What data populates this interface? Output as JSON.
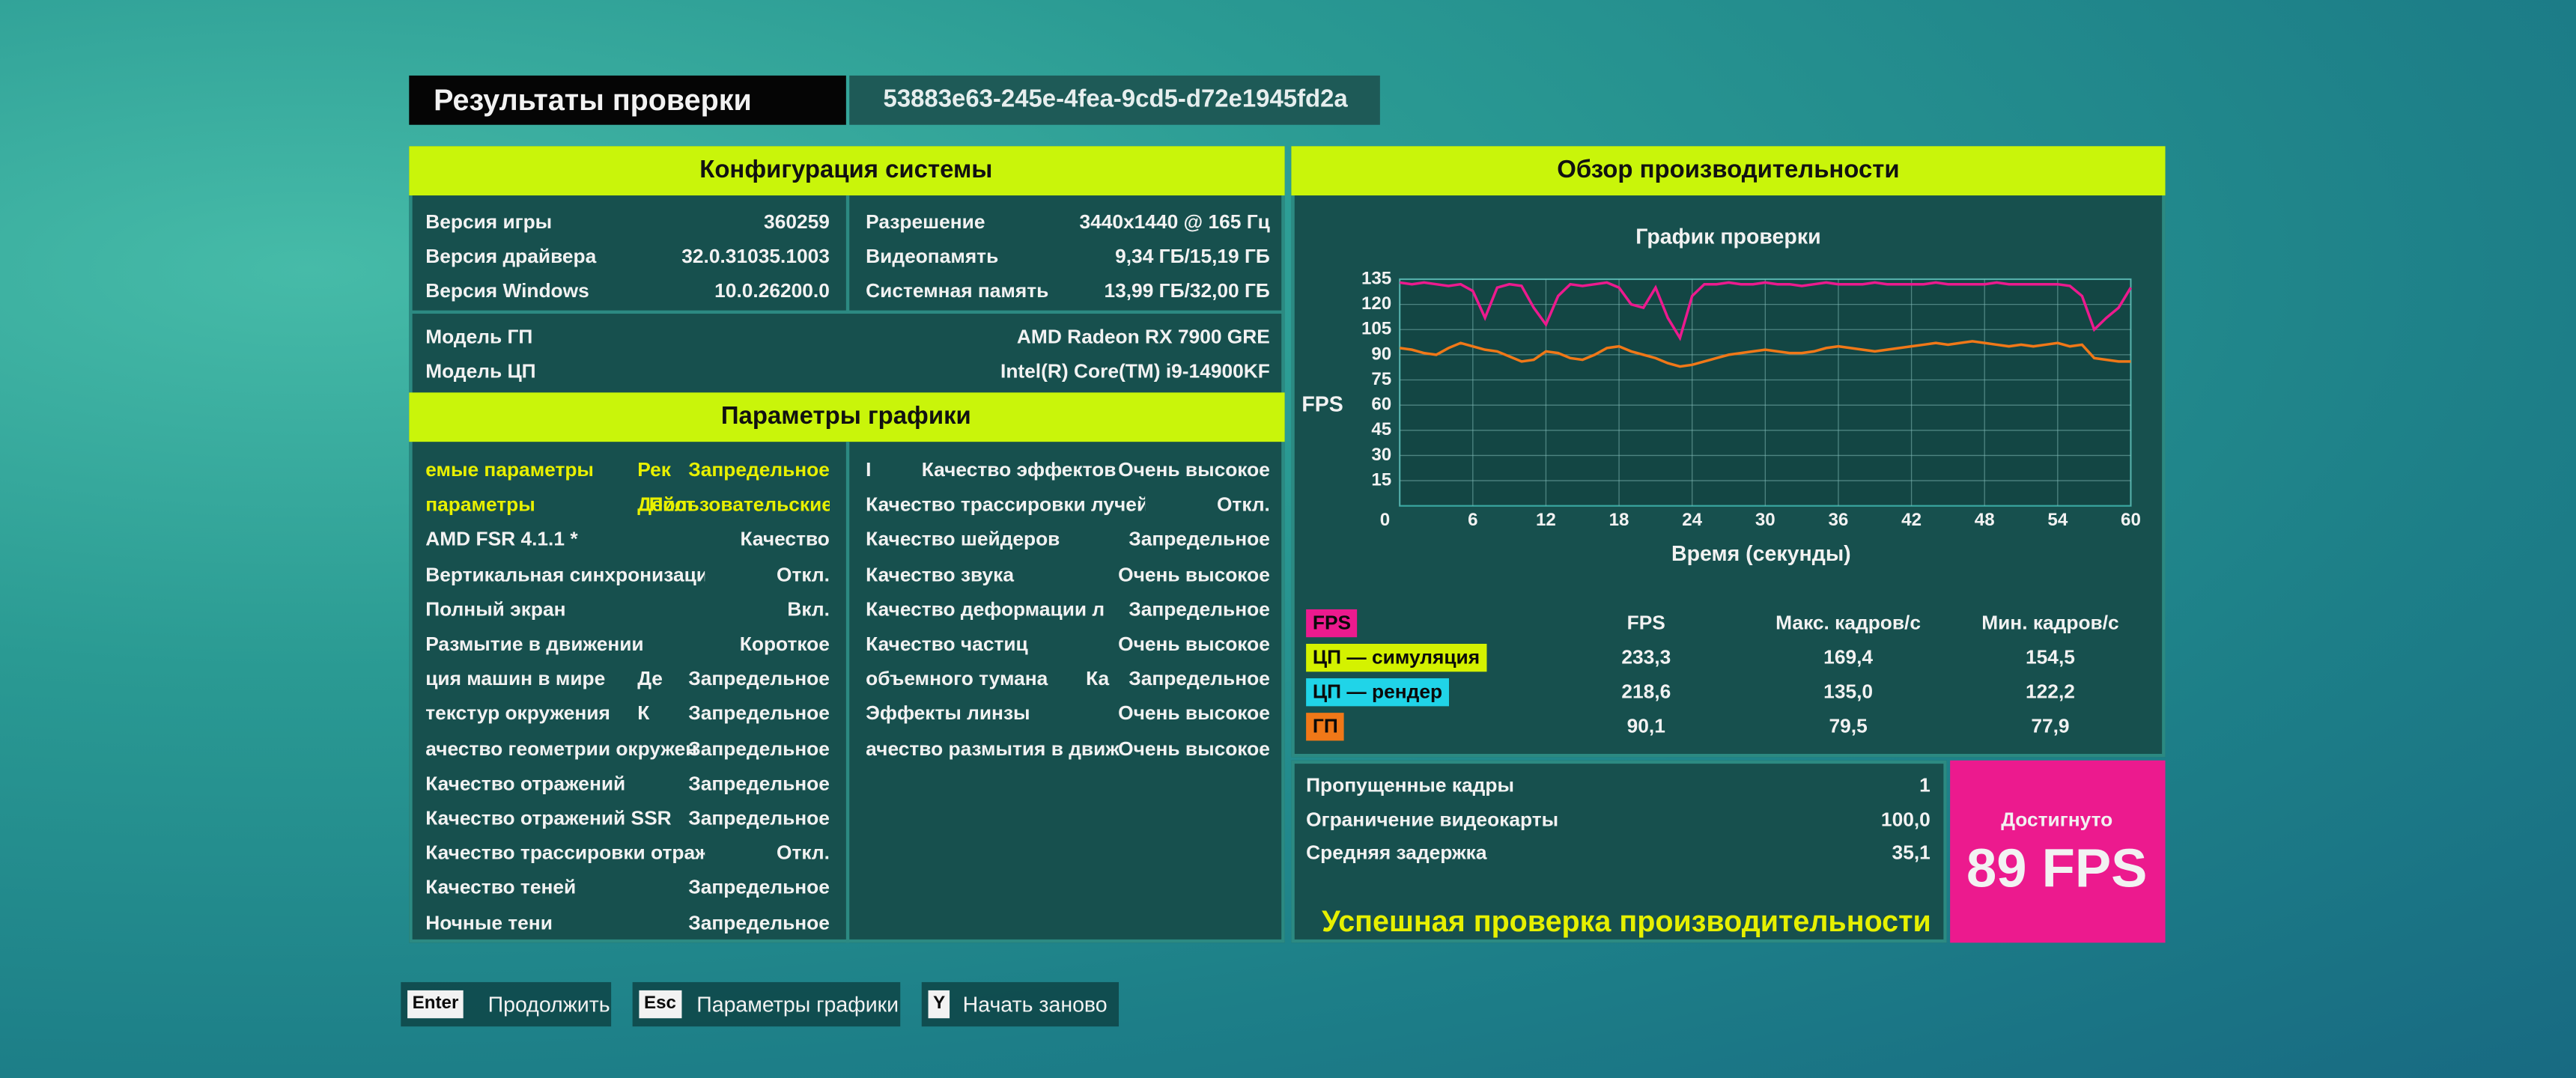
{
  "header": {
    "title": "Результаты проверки",
    "id": "53883e63-245e-4fea-9cd5-d72e1945fd2a"
  },
  "system_config": {
    "title": "Конфигурация системы",
    "left": [
      [
        "Версия игры",
        "360259"
      ],
      [
        "Версия драйвера",
        "32.0.31035.1003"
      ],
      [
        "Версия Windows",
        "10.0.26200.0"
      ]
    ],
    "right": [
      [
        "Разрешение",
        "3440x1440 @ 165 Гц"
      ],
      [
        "Видеопамять",
        "9,34 ГБ/15,19 ГБ"
      ],
      [
        "Системная память",
        "13,99 ГБ/32,00 ГБ"
      ]
    ],
    "hardware": [
      [
        "Модель ГП",
        "AMD Radeon RX 7900 GRE"
      ],
      [
        "Модель ЦП",
        "Intel(R) Core(TM) i9-14900KF"
      ]
    ]
  },
  "graphics": {
    "title": "Параметры графики",
    "left": [
      [
        "емые параметры",
        "Рек",
        "Запредельное"
      ],
      [
        "параметры",
        "Дейст",
        "Пользовательские"
      ],
      [
        "AMD FSR 4.1.1 *",
        "Качество"
      ],
      [
        "Вертикальная синхронизация",
        "Откл."
      ],
      [
        "Полный экран",
        "Вкл."
      ],
      [
        "Размытие в движении",
        "Короткое"
      ],
      [
        "ция машин в мире",
        "Де",
        "Запредельное"
      ],
      [
        "текстур окружения",
        "К",
        "Запредельное"
      ],
      [
        "ачество геометрии окружен",
        "Запредельное"
      ],
      [
        "Качество отражений",
        "Запредельное"
      ],
      [
        "Качество отражений SSR",
        "Запредельное"
      ],
      [
        "Качество трассировки отражений",
        "Откл."
      ],
      [
        "Качество теней",
        "Запредельное"
      ],
      [
        "Ночные тени",
        "Запредельное"
      ]
    ],
    "right": [
      [
        "I",
        "Качество эффектов",
        "Очень высокое"
      ],
      [
        "Качество трассировки лучей SSGI",
        "Откл."
      ],
      [
        "Качество шейдеров",
        "Запредельное"
      ],
      [
        "Качество звука",
        "Очень высокое"
      ],
      [
        "Качество деформации л",
        "Запредельное"
      ],
      [
        "Качество частиц",
        "Очень высокое"
      ],
      [
        "объемного тумана",
        "Ка",
        "Запредельное"
      ],
      [
        "Эффекты линзы",
        "Очень высокое"
      ],
      [
        "ачество размытия в движ",
        "Очень высокое"
      ]
    ]
  },
  "performance": {
    "title": "Обзор производительности",
    "chart": {
      "type": "line",
      "title": "График проверки",
      "y_label": "FPS",
      "x_label": "Время (секунды)",
      "xlim": [
        0,
        60
      ],
      "ylim": [
        0,
        135
      ],
      "xticks": [
        0,
        6,
        12,
        18,
        24,
        30,
        36,
        42,
        48,
        54,
        60
      ],
      "yticks": [
        15,
        30,
        45,
        60,
        75,
        90,
        105,
        120,
        135
      ],
      "grid": true,
      "x": [
        0,
        1,
        2,
        3,
        4,
        5,
        6,
        7,
        8,
        9,
        10,
        11,
        12,
        13,
        14,
        15,
        16,
        17,
        18,
        19,
        20,
        21,
        22,
        23,
        24,
        25,
        26,
        27,
        28,
        29,
        30,
        31,
        32,
        33,
        34,
        35,
        36,
        37,
        38,
        39,
        40,
        41,
        42,
        43,
        44,
        45,
        46,
        47,
        48,
        49,
        50,
        51,
        52,
        53,
        54,
        55,
        56,
        57,
        58,
        59,
        60
      ],
      "series": [
        {
          "color": "#ec1a8e",
          "values": [
            133,
            132,
            133,
            132,
            131,
            132,
            128,
            112,
            130,
            132,
            131,
            118,
            108,
            125,
            132,
            131,
            132,
            133,
            130,
            120,
            118,
            130,
            112,
            100,
            125,
            132,
            132,
            133,
            132,
            132,
            133,
            132,
            132,
            131,
            132,
            133,
            132,
            132,
            132,
            133,
            132,
            132,
            132,
            132,
            133,
            132,
            132,
            132,
            132,
            133,
            132,
            132,
            132,
            132,
            132,
            131,
            125,
            105,
            112,
            118,
            130
          ]
        },
        {
          "color": "#f07818",
          "values": [
            94,
            93,
            91,
            90,
            94,
            97,
            95,
            93,
            92,
            89,
            86,
            87,
            92,
            91,
            88,
            87,
            90,
            94,
            95,
            92,
            90,
            88,
            85,
            83,
            84,
            86,
            88,
            90,
            91,
            92,
            93,
            92,
            91,
            91,
            92,
            94,
            95,
            94,
            93,
            92,
            93,
            94,
            95,
            96,
            97,
            96,
            97,
            98,
            97,
            96,
            95,
            96,
            95,
            96,
            97,
            95,
            96,
            88,
            87,
            86,
            86
          ]
        }
      ]
    },
    "columns": [
      "FPS",
      "Макс. кадров/с",
      "Мин. кадров/с"
    ],
    "legend": [
      {
        "name": "FPS",
        "color": "#ec1a8e"
      },
      {
        "name": "ЦП — симуляция",
        "color": "#d4f200",
        "stats": [
          "233,3",
          "169,4",
          "154,5"
        ]
      },
      {
        "name": "ЦП — рендер",
        "color": "#20d4e8",
        "stats": [
          "218,6",
          "135,0",
          "122,2"
        ]
      },
      {
        "name": "ГП",
        "color": "#f07818",
        "stats": [
          "90,1",
          "79,5",
          "77,9"
        ]
      }
    ]
  },
  "summary": {
    "rows": [
      [
        "Пропущенные кадры",
        "1"
      ],
      [
        "Ограничение видеокарты",
        "100,0"
      ],
      [
        "Средняя задержка",
        "35,1"
      ]
    ],
    "status": "Успешная проверка производительности",
    "result_label": "Достигнуто",
    "result": "89 FPS"
  },
  "footer": {
    "buttons": [
      {
        "key": "Enter",
        "label": "Продолжить"
      },
      {
        "key": "Esc",
        "label": "Параметры графики"
      },
      {
        "key": "Y",
        "label": "Начать заново"
      }
    ]
  }
}
